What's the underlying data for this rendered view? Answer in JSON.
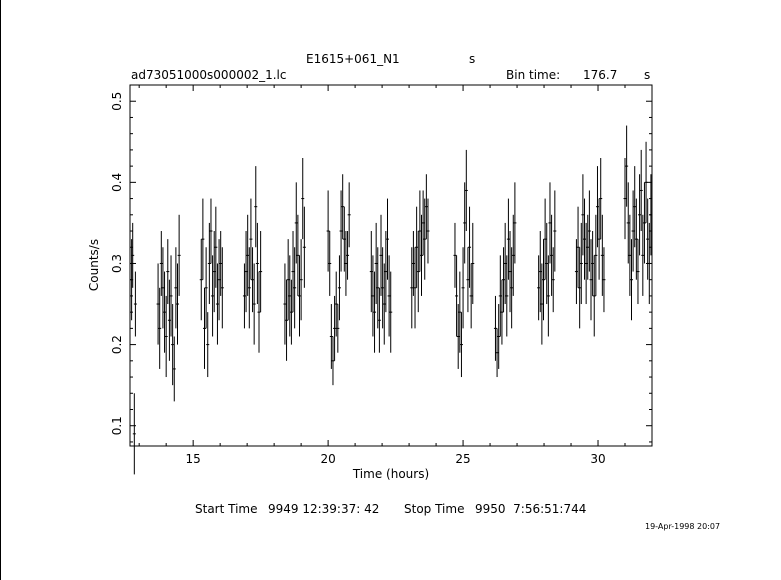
{
  "header": {
    "object_name": "E1615+061_N1",
    "object_unit": "s",
    "file_name": "ad73051000s000002_1.lc",
    "bin_time_label": "Bin time:",
    "bin_time_value": "176.7",
    "bin_time_unit": "s"
  },
  "footer": {
    "start_label": "Start Time",
    "start_value": "9949 12:39:37: 42",
    "stop_label": "Stop Time",
    "stop_value": "9950  7:56:51:744",
    "plot_date": "19-Apr-1998 20:07"
  },
  "chart_data": {
    "type": "scatter",
    "xlabel": "Time (hours)",
    "ylabel": "Counts/s",
    "xlim": [
      12.66,
      32.0
    ],
    "ylim": [
      0.075,
      0.52
    ],
    "x_ticks": [
      15,
      20,
      25,
      30
    ],
    "y_ticks": [
      0.1,
      0.2,
      0.3,
      0.4,
      0.5
    ],
    "grid": false,
    "error_bars": true,
    "series": [
      {
        "points": [
          [
            12.72,
            0.28,
            0.05
          ],
          [
            12.76,
            0.31,
            0.04
          ],
          [
            12.82,
            0.09,
            0.05
          ],
          [
            12.86,
            0.25,
            0.04
          ],
          [
            13.7,
            0.25,
            0.05
          ],
          [
            13.76,
            0.22,
            0.05
          ],
          [
            13.82,
            0.3,
            0.04
          ],
          [
            13.88,
            0.27,
            0.05
          ],
          [
            13.94,
            0.24,
            0.05
          ],
          [
            14.0,
            0.21,
            0.05
          ],
          [
            14.06,
            0.29,
            0.04
          ],
          [
            14.12,
            0.23,
            0.05
          ],
          [
            14.18,
            0.26,
            0.05
          ],
          [
            14.24,
            0.2,
            0.05
          ],
          [
            14.3,
            0.17,
            0.04
          ],
          [
            14.36,
            0.27,
            0.05
          ],
          [
            14.42,
            0.25,
            0.05
          ],
          [
            14.48,
            0.31,
            0.05
          ],
          [
            15.3,
            0.28,
            0.05
          ],
          [
            15.36,
            0.33,
            0.05
          ],
          [
            15.42,
            0.22,
            0.05
          ],
          [
            15.48,
            0.27,
            0.05
          ],
          [
            15.54,
            0.2,
            0.04
          ],
          [
            15.6,
            0.3,
            0.05
          ],
          [
            15.66,
            0.34,
            0.04
          ],
          [
            15.72,
            0.26,
            0.05
          ],
          [
            15.78,
            0.29,
            0.05
          ],
          [
            15.84,
            0.32,
            0.05
          ],
          [
            15.9,
            0.25,
            0.05
          ],
          [
            15.96,
            0.28,
            0.05
          ],
          [
            16.02,
            0.3,
            0.04
          ],
          [
            16.08,
            0.27,
            0.05
          ],
          [
            16.9,
            0.26,
            0.04
          ],
          [
            16.96,
            0.29,
            0.05
          ],
          [
            17.02,
            0.31,
            0.05
          ],
          [
            17.08,
            0.27,
            0.05
          ],
          [
            17.14,
            0.33,
            0.05
          ],
          [
            17.2,
            0.28,
            0.04
          ],
          [
            17.26,
            0.25,
            0.05
          ],
          [
            17.32,
            0.37,
            0.05
          ],
          [
            17.38,
            0.3,
            0.05
          ],
          [
            17.44,
            0.24,
            0.05
          ],
          [
            17.5,
            0.29,
            0.05
          ],
          [
            18.4,
            0.25,
            0.05
          ],
          [
            18.46,
            0.23,
            0.05
          ],
          [
            18.52,
            0.28,
            0.05
          ],
          [
            18.58,
            0.26,
            0.05
          ],
          [
            18.64,
            0.24,
            0.04
          ],
          [
            18.7,
            0.29,
            0.05
          ],
          [
            18.76,
            0.27,
            0.05
          ],
          [
            18.82,
            0.35,
            0.05
          ],
          [
            18.88,
            0.31,
            0.05
          ],
          [
            18.94,
            0.26,
            0.05
          ],
          [
            19.0,
            0.28,
            0.05
          ],
          [
            19.06,
            0.38,
            0.05
          ],
          [
            19.12,
            0.32,
            0.05
          ],
          [
            20.0,
            0.34,
            0.05
          ],
          [
            20.06,
            0.3,
            0.04
          ],
          [
            20.12,
            0.21,
            0.04
          ],
          [
            20.18,
            0.18,
            0.03
          ],
          [
            20.24,
            0.22,
            0.04
          ],
          [
            20.3,
            0.25,
            0.04
          ],
          [
            20.36,
            0.22,
            0.03
          ],
          [
            20.42,
            0.27,
            0.04
          ],
          [
            20.48,
            0.34,
            0.05
          ],
          [
            20.54,
            0.37,
            0.04
          ],
          [
            20.6,
            0.33,
            0.04
          ],
          [
            20.66,
            0.3,
            0.04
          ],
          [
            20.72,
            0.31,
            0.03
          ],
          [
            20.78,
            0.36,
            0.04
          ],
          [
            21.6,
            0.29,
            0.05
          ],
          [
            21.66,
            0.26,
            0.05
          ],
          [
            21.72,
            0.24,
            0.05
          ],
          [
            21.78,
            0.3,
            0.05
          ],
          [
            21.84,
            0.27,
            0.05
          ],
          [
            21.9,
            0.23,
            0.04
          ],
          [
            21.96,
            0.31,
            0.05
          ],
          [
            22.02,
            0.27,
            0.05
          ],
          [
            22.08,
            0.25,
            0.05
          ],
          [
            22.14,
            0.29,
            0.05
          ],
          [
            22.2,
            0.33,
            0.05
          ],
          [
            22.26,
            0.26,
            0.05
          ],
          [
            22.32,
            0.24,
            0.05
          ],
          [
            23.1,
            0.27,
            0.05
          ],
          [
            23.16,
            0.3,
            0.04
          ],
          [
            23.22,
            0.27,
            0.05
          ],
          [
            23.28,
            0.32,
            0.05
          ],
          [
            23.34,
            0.29,
            0.05
          ],
          [
            23.4,
            0.34,
            0.05
          ],
          [
            23.46,
            0.31,
            0.05
          ],
          [
            23.52,
            0.35,
            0.04
          ],
          [
            23.58,
            0.33,
            0.05
          ],
          [
            23.64,
            0.37,
            0.04
          ],
          [
            23.7,
            0.34,
            0.04
          ],
          [
            24.7,
            0.31,
            0.04
          ],
          [
            24.76,
            0.26,
            0.05
          ],
          [
            24.82,
            0.21,
            0.04
          ],
          [
            24.88,
            0.24,
            0.05
          ],
          [
            24.94,
            0.2,
            0.04
          ],
          [
            25.0,
            0.27,
            0.05
          ],
          [
            25.06,
            0.35,
            0.05
          ],
          [
            25.12,
            0.39,
            0.05
          ],
          [
            25.18,
            0.28,
            0.04
          ],
          [
            25.24,
            0.32,
            0.05
          ],
          [
            25.3,
            0.26,
            0.04
          ],
          [
            25.36,
            0.3,
            0.05
          ],
          [
            26.2,
            0.22,
            0.04
          ],
          [
            26.26,
            0.19,
            0.03
          ],
          [
            26.32,
            0.21,
            0.04
          ],
          [
            26.38,
            0.26,
            0.05
          ],
          [
            26.44,
            0.24,
            0.04
          ],
          [
            26.5,
            0.28,
            0.04
          ],
          [
            26.56,
            0.3,
            0.05
          ],
          [
            26.62,
            0.26,
            0.05
          ],
          [
            26.68,
            0.33,
            0.05
          ],
          [
            26.74,
            0.29,
            0.05
          ],
          [
            26.8,
            0.27,
            0.05
          ],
          [
            26.86,
            0.31,
            0.05
          ],
          [
            26.92,
            0.35,
            0.05
          ],
          [
            27.8,
            0.27,
            0.04
          ],
          [
            27.86,
            0.29,
            0.05
          ],
          [
            27.92,
            0.25,
            0.05
          ],
          [
            27.98,
            0.28,
            0.05
          ],
          [
            28.04,
            0.33,
            0.05
          ],
          [
            28.1,
            0.3,
            0.05
          ],
          [
            28.16,
            0.26,
            0.05
          ],
          [
            28.22,
            0.35,
            0.05
          ],
          [
            28.28,
            0.31,
            0.05
          ],
          [
            28.34,
            0.28,
            0.04
          ],
          [
            28.4,
            0.34,
            0.05
          ],
          [
            29.2,
            0.29,
            0.04
          ],
          [
            29.26,
            0.32,
            0.05
          ],
          [
            29.32,
            0.27,
            0.05
          ],
          [
            29.38,
            0.3,
            0.05
          ],
          [
            29.44,
            0.36,
            0.05
          ],
          [
            29.5,
            0.33,
            0.05
          ],
          [
            29.56,
            0.3,
            0.05
          ],
          [
            29.62,
            0.32,
            0.04
          ],
          [
            29.68,
            0.34,
            0.05
          ],
          [
            29.74,
            0.28,
            0.05
          ],
          [
            29.8,
            0.3,
            0.04
          ],
          [
            29.86,
            0.26,
            0.05
          ],
          [
            29.92,
            0.31,
            0.05
          ],
          [
            29.98,
            0.37,
            0.05
          ],
          [
            30.04,
            0.33,
            0.05
          ],
          [
            30.1,
            0.38,
            0.05
          ],
          [
            30.16,
            0.31,
            0.05
          ],
          [
            30.22,
            0.28,
            0.04
          ],
          [
            31.0,
            0.38,
            0.05
          ],
          [
            31.06,
            0.42,
            0.05
          ],
          [
            31.12,
            0.35,
            0.05
          ],
          [
            31.18,
            0.31,
            0.05
          ],
          [
            31.24,
            0.28,
            0.05
          ],
          [
            31.3,
            0.34,
            0.05
          ],
          [
            31.36,
            0.37,
            0.05
          ],
          [
            31.42,
            0.33,
            0.05
          ],
          [
            31.48,
            0.29,
            0.04
          ],
          [
            31.54,
            0.36,
            0.05
          ],
          [
            31.6,
            0.39,
            0.05
          ],
          [
            31.66,
            0.31,
            0.05
          ],
          [
            31.72,
            0.35,
            0.05
          ],
          [
            31.78,
            0.4,
            0.05
          ],
          [
            31.84,
            0.33,
            0.05
          ],
          [
            31.9,
            0.3,
            0.05
          ],
          [
            31.96,
            0.36,
            0.05
          ]
        ]
      }
    ]
  }
}
